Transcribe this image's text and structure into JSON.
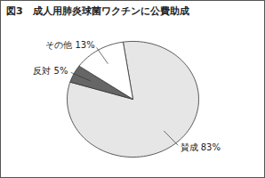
{
  "chart_data": {
    "type": "pie",
    "title": "図3　成人用肺炎球菌ワクチンに公費助成",
    "categories": [
      "賛成",
      "反対",
      "その他"
    ],
    "values": [
      83,
      5,
      13
    ],
    "value_labels": [
      "83%",
      "5%",
      "13%"
    ],
    "colors": [
      "#e6e6e6",
      "#666666",
      "#ffffff"
    ],
    "data_labels": true
  }
}
